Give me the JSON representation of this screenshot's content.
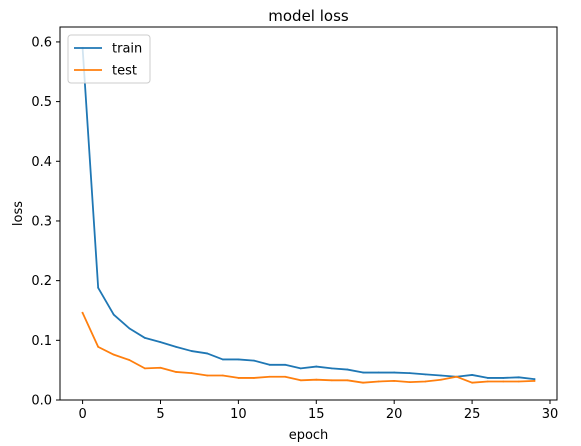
{
  "chart_data": {
    "type": "line",
    "title": "model loss",
    "xlabel": "epoch",
    "ylabel": "loss",
    "xlim": [
      -1.45,
      30.45
    ],
    "ylim": [
      0,
      0.625
    ],
    "xticks": [
      "0",
      "5",
      "10",
      "15",
      "20",
      "25",
      "30"
    ],
    "yticks": [
      "0.0",
      "0.1",
      "0.2",
      "0.3",
      "0.4",
      "0.5",
      "0.6"
    ],
    "grid": false,
    "legend_position": "upper left",
    "x": [
      0,
      1,
      2,
      3,
      4,
      5,
      6,
      7,
      8,
      9,
      10,
      11,
      12,
      13,
      14,
      15,
      16,
      17,
      18,
      19,
      20,
      21,
      22,
      23,
      24,
      25,
      26,
      27,
      28,
      29
    ],
    "series": [
      {
        "name": "train",
        "color": "#1f77b4",
        "values": [
          0.59,
          0.188,
          0.143,
          0.12,
          0.104,
          0.097,
          0.089,
          0.082,
          0.078,
          0.068,
          0.068,
          0.066,
          0.059,
          0.059,
          0.053,
          0.056,
          0.053,
          0.051,
          0.046,
          0.046,
          0.046,
          0.045,
          0.043,
          0.041,
          0.039,
          0.042,
          0.037,
          0.037,
          0.038,
          0.035
        ]
      },
      {
        "name": "test",
        "color": "#ff7f0e",
        "values": [
          0.146,
          0.089,
          0.076,
          0.067,
          0.053,
          0.054,
          0.047,
          0.045,
          0.041,
          0.041,
          0.037,
          0.037,
          0.039,
          0.039,
          0.033,
          0.034,
          0.033,
          0.033,
          0.029,
          0.031,
          0.032,
          0.03,
          0.031,
          0.034,
          0.039,
          0.029,
          0.031,
          0.031,
          0.031,
          0.032
        ]
      }
    ]
  }
}
